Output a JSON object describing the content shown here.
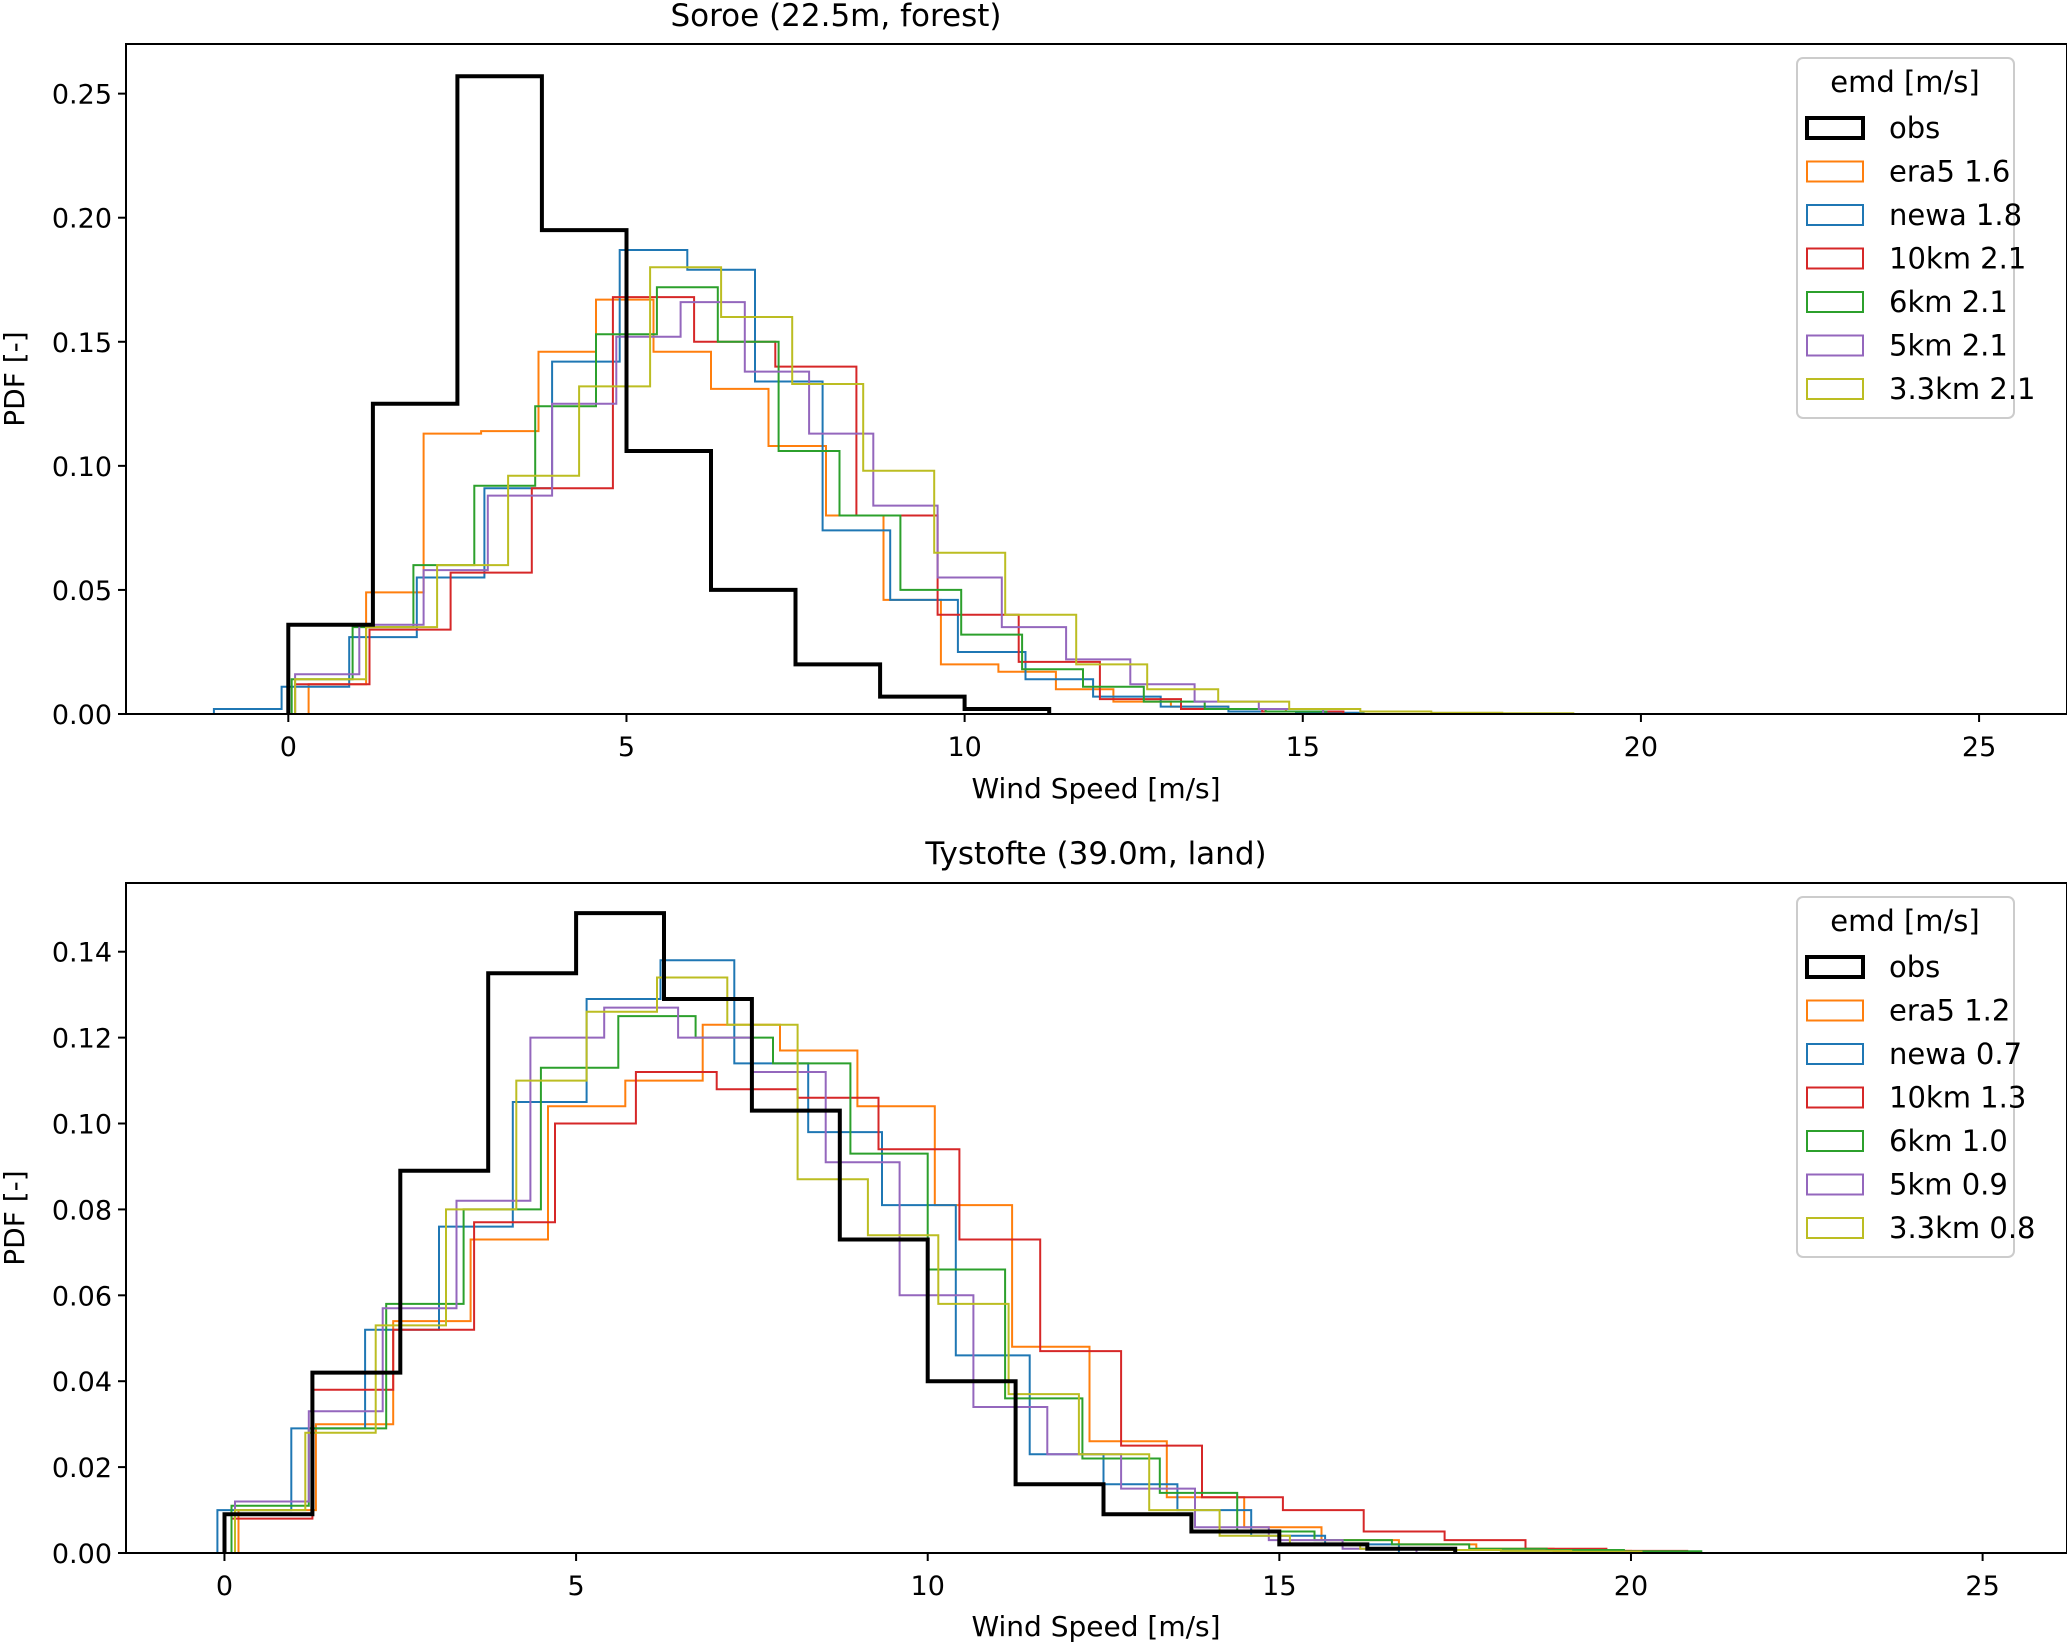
{
  "chart_data": [
    {
      "type": "step-histogram",
      "title": "Soroe (22.5m, forest)",
      "xlabel": "Wind Speed [m/s]",
      "ylabel": "PDF [-]",
      "xlim": [
        -2.4,
        26.3
      ],
      "ylim": [
        0,
        0.27
      ],
      "xticks": [
        0,
        5,
        10,
        15,
        20,
        25
      ],
      "yticks": [
        0.0,
        0.05,
        0.1,
        0.15,
        0.2,
        0.25
      ],
      "ytick_labels": [
        "0.00",
        "0.05",
        "0.10",
        "0.15",
        "0.20",
        "0.25"
      ],
      "legend": {
        "title": "emd [m/s]",
        "position": "top-right"
      },
      "series": [
        {
          "name": "obs",
          "label": "obs",
          "color": "#000000",
          "width": 4,
          "edges": [
            0,
            1.25,
            2.5,
            3.75,
            5,
            6.25,
            7.5,
            8.75,
            10,
            11.25
          ],
          "values": [
            0.036,
            0.125,
            0.257,
            0.195,
            0.106,
            0.05,
            0.02,
            0.007,
            0.002
          ]
        },
        {
          "name": "era5",
          "label": "era5 1.6",
          "color": "#ff7f0e",
          "width": 2,
          "edges": [
            0.3,
            1.15,
            2.0,
            2.85,
            3.7,
            4.55,
            5.4,
            6.25,
            7.1,
            7.95,
            8.8,
            9.65,
            10.5,
            11.35,
            12.2,
            13.05,
            13.9,
            14.75,
            15.6
          ],
          "values": [
            0.012,
            0.049,
            0.113,
            0.114,
            0.146,
            0.167,
            0.146,
            0.131,
            0.108,
            0.08,
            0.046,
            0.02,
            0.017,
            0.01,
            0.005,
            0.003,
            0.002,
            0.001
          ]
        },
        {
          "name": "newa",
          "label": "newa 1.8",
          "color": "#1f77b4",
          "width": 2,
          "edges": [
            -1.1,
            -0.1,
            0.9,
            1.9,
            2.9,
            3.9,
            4.9,
            5.9,
            6.9,
            7.9,
            8.9,
            9.9,
            10.9,
            11.9,
            12.9,
            13.9,
            14.9,
            15.9
          ],
          "values": [
            0.002,
            0.011,
            0.031,
            0.055,
            0.091,
            0.142,
            0.187,
            0.179,
            0.134,
            0.074,
            0.046,
            0.025,
            0.014,
            0.007,
            0.003,
            0.001,
            0.0005
          ]
        },
        {
          "name": "10km",
          "label": "10km 2.1",
          "color": "#d62728",
          "width": 2,
          "edges": [
            0.1,
            1.2,
            2.4,
            3.6,
            4.8,
            6.0,
            7.2,
            8.4,
            9.6,
            10.8,
            12.0,
            13.2,
            14.4,
            15.6
          ],
          "values": [
            0.012,
            0.034,
            0.057,
            0.091,
            0.168,
            0.15,
            0.14,
            0.08,
            0.04,
            0.021,
            0.006,
            0.002,
            0.001
          ]
        },
        {
          "name": "6km",
          "label": "6km 2.1",
          "color": "#2ca02c",
          "width": 2,
          "edges": [
            0.05,
            0.95,
            1.85,
            2.75,
            3.65,
            4.55,
            5.45,
            6.35,
            7.25,
            8.15,
            9.05,
            9.95,
            10.85,
            11.75,
            12.65,
            13.55,
            14.45,
            15.35
          ],
          "values": [
            0.014,
            0.035,
            0.06,
            0.092,
            0.124,
            0.153,
            0.172,
            0.15,
            0.106,
            0.08,
            0.05,
            0.032,
            0.018,
            0.011,
            0.005,
            0.002,
            0.001
          ]
        },
        {
          "name": "5km",
          "label": "5km 2.1",
          "color": "#9467bd",
          "width": 2,
          "edges": [
            0.1,
            1.05,
            2.0,
            2.95,
            3.9,
            4.85,
            5.8,
            6.75,
            7.7,
            8.65,
            9.6,
            10.55,
            11.5,
            12.45,
            13.4,
            14.35,
            15.3
          ],
          "values": [
            0.016,
            0.036,
            0.058,
            0.088,
            0.125,
            0.152,
            0.166,
            0.138,
            0.113,
            0.084,
            0.055,
            0.035,
            0.022,
            0.012,
            0.005,
            0.002
          ]
        },
        {
          "name": "3.3km",
          "label": "3.3km 2.1",
          "color": "#bcbd22",
          "width": 2,
          "edges": [
            0.1,
            1.15,
            2.2,
            3.25,
            4.3,
            5.35,
            6.4,
            7.45,
            8.5,
            9.55,
            10.6,
            11.65,
            12.7,
            13.75,
            14.8,
            15.85,
            16.9,
            17.95,
            19.0
          ],
          "values": [
            0.014,
            0.035,
            0.06,
            0.096,
            0.132,
            0.18,
            0.16,
            0.133,
            0.098,
            0.065,
            0.04,
            0.02,
            0.01,
            0.005,
            0.002,
            0.001,
            0.0005,
            0.0003
          ]
        }
      ]
    },
    {
      "type": "step-histogram",
      "title": "Tystofte (39.0m, land)",
      "xlabel": "Wind Speed [m/s]",
      "ylabel": "PDF [-]",
      "xlim": [
        -1.4,
        26.2
      ],
      "ylim": [
        0,
        0.156
      ],
      "xticks": [
        0,
        5,
        10,
        15,
        20,
        25
      ],
      "yticks": [
        0.0,
        0.02,
        0.04,
        0.06,
        0.08,
        0.1,
        0.12,
        0.14
      ],
      "ytick_labels": [
        "0.00",
        "0.02",
        "0.04",
        "0.06",
        "0.08",
        "0.10",
        "0.12",
        "0.14"
      ],
      "legend": {
        "title": "emd [m/s]",
        "position": "top-right"
      },
      "series": [
        {
          "name": "obs",
          "label": "obs",
          "color": "#000000",
          "width": 4,
          "edges": [
            0,
            1.25,
            2.5,
            3.75,
            5,
            6.25,
            7.5,
            8.75,
            10,
            11.25,
            12.5,
            13.75,
            15,
            16.25,
            17.5
          ],
          "values": [
            0.009,
            0.042,
            0.089,
            0.135,
            0.149,
            0.129,
            0.103,
            0.073,
            0.04,
            0.016,
            0.009,
            0.005,
            0.002,
            0.001
          ]
        },
        {
          "name": "era5",
          "label": "era5 1.2",
          "color": "#ff7f0e",
          "width": 2,
          "edges": [
            0.2,
            1.3,
            2.4,
            3.5,
            4.6,
            5.7,
            6.8,
            7.9,
            9.0,
            10.1,
            11.2,
            12.3,
            13.4,
            14.5,
            15.6,
            16.7,
            17.8,
            18.9,
            20.0
          ],
          "values": [
            0.01,
            0.03,
            0.054,
            0.073,
            0.104,
            0.11,
            0.123,
            0.117,
            0.104,
            0.081,
            0.048,
            0.026,
            0.013,
            0.006,
            0.003,
            0.002,
            0.001,
            0.0005
          ]
        },
        {
          "name": "newa",
          "label": "newa 0.7",
          "color": "#1f77b4",
          "width": 2,
          "edges": [
            -0.1,
            0.95,
            2.0,
            3.05,
            4.1,
            5.15,
            6.2,
            7.25,
            8.3,
            9.35,
            10.4,
            11.45,
            12.5,
            13.55,
            14.6,
            15.65,
            16.7
          ],
          "values": [
            0.01,
            0.029,
            0.052,
            0.076,
            0.105,
            0.129,
            0.138,
            0.114,
            0.098,
            0.081,
            0.046,
            0.023,
            0.016,
            0.01,
            0.004,
            0.002
          ]
        },
        {
          "name": "10km",
          "label": "10km 1.3",
          "color": "#d62728",
          "width": 2,
          "edges": [
            0.1,
            1.25,
            2.4,
            3.55,
            4.7,
            5.85,
            7.0,
            8.15,
            9.3,
            10.45,
            11.6,
            12.75,
            13.9,
            15.05,
            16.2,
            17.35,
            18.5,
            19.65,
            20.8
          ],
          "values": [
            0.008,
            0.038,
            0.052,
            0.077,
            0.1,
            0.112,
            0.108,
            0.106,
            0.094,
            0.073,
            0.047,
            0.025,
            0.013,
            0.01,
            0.005,
            0.003,
            0.001,
            0.0005
          ]
        },
        {
          "name": "6km",
          "label": "6km 1.0",
          "color": "#2ca02c",
          "width": 2,
          "edges": [
            0.1,
            1.2,
            2.3,
            3.4,
            4.5,
            5.6,
            6.7,
            7.8,
            8.9,
            10.0,
            11.1,
            12.2,
            13.3,
            14.4,
            15.5,
            16.6,
            17.7,
            18.8,
            19.9,
            21.0
          ],
          "values": [
            0.011,
            0.029,
            0.058,
            0.08,
            0.113,
            0.125,
            0.12,
            0.114,
            0.093,
            0.066,
            0.036,
            0.022,
            0.014,
            0.005,
            0.003,
            0.002,
            0.001,
            0.0007,
            0.0004
          ]
        },
        {
          "name": "5km",
          "label": "5km 0.9",
          "color": "#9467bd",
          "width": 2,
          "edges": [
            0.15,
            1.2,
            2.25,
            3.3,
            4.35,
            5.4,
            6.45,
            7.5,
            8.55,
            9.6,
            10.65,
            11.7,
            12.75,
            13.8,
            14.85,
            15.9,
            16.95
          ],
          "values": [
            0.012,
            0.033,
            0.057,
            0.082,
            0.12,
            0.127,
            0.12,
            0.112,
            0.091,
            0.06,
            0.034,
            0.023,
            0.015,
            0.006,
            0.003,
            0.001
          ]
        },
        {
          "name": "3.3km",
          "label": "3.3km 0.8",
          "color": "#bcbd22",
          "width": 2,
          "edges": [
            0.15,
            1.15,
            2.15,
            3.15,
            4.15,
            5.15,
            6.15,
            7.15,
            8.15,
            9.15,
            10.15,
            11.15,
            12.15,
            13.15,
            14.15,
            15.15,
            16.15,
            17.15,
            18.15,
            19.15,
            20.15
          ],
          "values": [
            0.01,
            0.028,
            0.053,
            0.08,
            0.11,
            0.126,
            0.134,
            0.123,
            0.087,
            0.074,
            0.058,
            0.037,
            0.023,
            0.01,
            0.004,
            0.002,
            0.001,
            0.0007,
            0.0005,
            0.0003
          ]
        }
      ]
    }
  ]
}
